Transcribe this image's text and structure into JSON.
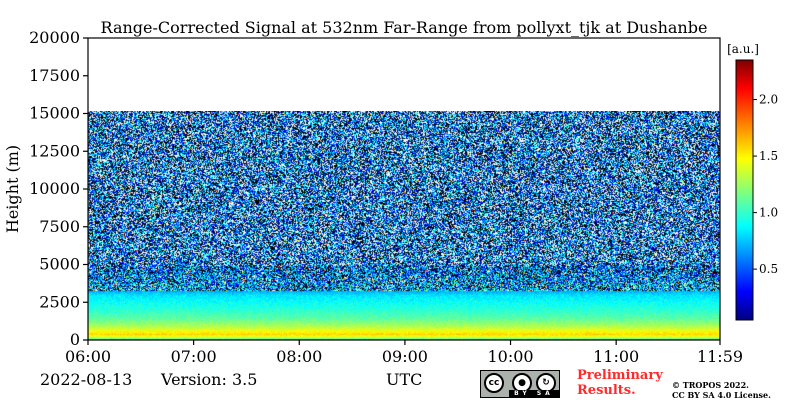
{
  "chart_data": {
    "type": "heatmap",
    "title": "Range-Corrected Signal at 532nm Far-Range from pollyxt_tjk at Dushanbe",
    "ylabel": "Height (m)",
    "xlabel": "UTC",
    "x_ticks": [
      "06:00",
      "07:00",
      "08:00",
      "09:00",
      "10:00",
      "11:00",
      "11:59"
    ],
    "x_range_hours": [
      6.0,
      11.983
    ],
    "y_ticks": [
      0,
      2500,
      5000,
      7500,
      10000,
      12500,
      15000,
      17500,
      20000
    ],
    "y_range": [
      0,
      20000
    ],
    "data_top_height": 15300,
    "colorbar": {
      "unit": "[a.u.]",
      "range": [
        0.05,
        2.35
      ],
      "ticks": [
        0.5,
        1.0,
        1.5,
        2.0
      ],
      "colormap": "jet"
    },
    "profile": [
      {
        "height": 0,
        "value": 0.35
      },
      {
        "height": 150,
        "value": 1.25
      },
      {
        "height": 400,
        "value": 1.55
      },
      {
        "height": 900,
        "value": 1.25
      },
      {
        "height": 1500,
        "value": 1.0
      },
      {
        "height": 2200,
        "value": 0.85
      },
      {
        "height": 3000,
        "value": 0.7
      },
      {
        "height": 3500,
        "value": 0.45
      },
      {
        "height": 5000,
        "value": 0.3
      },
      {
        "height": 8000,
        "value": 0.25
      },
      {
        "height": 15300,
        "value": 0.25
      }
    ]
  },
  "footer": {
    "date": "2022-08-13",
    "version": "Version: 3.5",
    "utc_label": "UTC",
    "preliminary_line1": "Preliminary",
    "preliminary_line2": "Results.",
    "copyright_line1": "© TROPOS 2022.",
    "copyright_line2": "CC BY SA 4.0 License.",
    "license_badge": {
      "cc": "cc",
      "by": "BY",
      "sa": "SA"
    }
  },
  "colors": {
    "axis": "#000000",
    "background": "#ffffff",
    "preliminary": "#ff2a2a"
  }
}
